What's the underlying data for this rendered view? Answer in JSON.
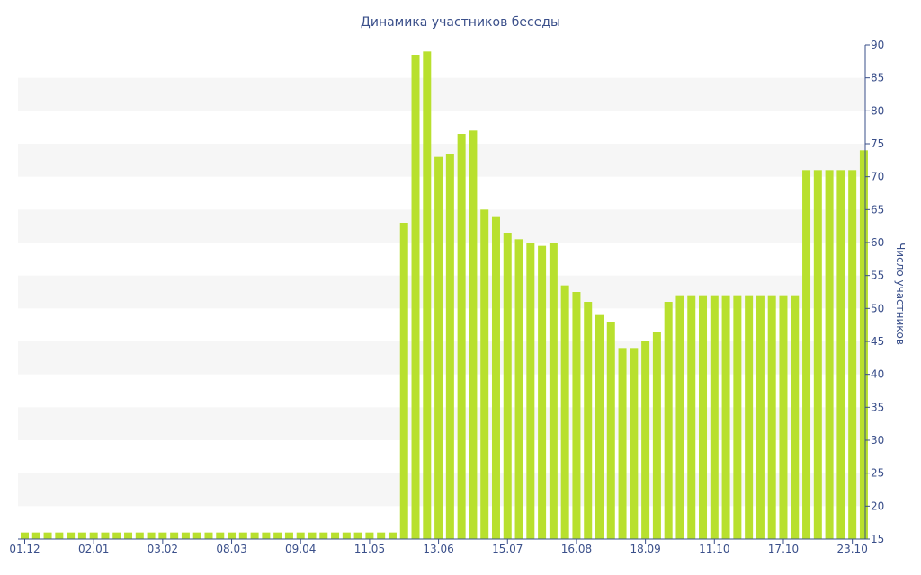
{
  "chart_data": {
    "type": "bar",
    "title": "Динамика участников беседы",
    "xlabel": "",
    "ylabel": "Число участников",
    "ylim": [
      15,
      90
    ],
    "yticks": [
      15,
      20,
      25,
      30,
      35,
      40,
      45,
      50,
      55,
      60,
      65,
      70,
      75,
      80,
      85,
      90
    ],
    "y_axis_side": "right",
    "grid": "alternating horizontal bands",
    "bar_color": "#b8e02e",
    "band_color": "#f6f6f6",
    "axis_color": "#3a4f8a",
    "x_tick_labels": [
      "01.12",
      "02.01",
      "03.02",
      "08.03",
      "09.04",
      "11.05",
      "13.06",
      "15.07",
      "16.08",
      "18.09",
      "11.10",
      "17.10",
      "23.10"
    ],
    "x_tick_bar_index": [
      0,
      6,
      12,
      18,
      24,
      30,
      36,
      42,
      48,
      54,
      60,
      66,
      72
    ],
    "values": [
      16,
      16,
      16,
      16,
      16,
      16,
      16,
      16,
      16,
      16,
      16,
      16,
      16,
      16,
      16,
      16,
      16,
      16,
      16,
      16,
      16,
      16,
      16,
      16,
      16,
      16,
      16,
      16,
      16,
      16,
      16,
      16,
      16,
      63,
      88.5,
      89,
      73,
      73.5,
      76.5,
      77,
      65,
      64,
      61.5,
      60.5,
      60,
      59.5,
      60,
      53.5,
      52.5,
      51,
      49,
      48,
      44,
      44,
      45,
      46.5,
      51,
      52,
      52,
      52,
      52,
      52,
      52,
      52,
      52,
      52,
      52,
      52,
      71,
      71,
      71,
      71,
      71,
      74
    ]
  }
}
